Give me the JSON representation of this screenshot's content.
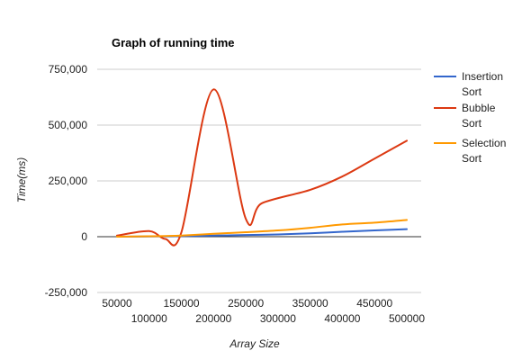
{
  "chart_data": {
    "type": "line",
    "title": "Graph of running time",
    "xlabel": "Array Size",
    "ylabel": "Time(ms)",
    "xlim": [
      50000,
      500000
    ],
    "ylim": [
      -250000,
      750000
    ],
    "x_ticks_row1": [
      "50000",
      "150000",
      "250000",
      "350000",
      "450000"
    ],
    "x_ticks_row2": [
      "100000",
      "200000",
      "300000",
      "400000",
      "500000"
    ],
    "y_ticks": [
      "750,000",
      "500,000",
      "250,000",
      "0",
      "-250,000"
    ],
    "y_tick_values": [
      750000,
      500000,
      250000,
      0,
      -250000
    ],
    "grid": true,
    "legend_position": "right",
    "series": [
      {
        "name": "Insertion Sort",
        "color": "#3366cc",
        "x": [
          50000,
          100000,
          125000,
          150000,
          200000,
          250000,
          300000,
          350000,
          400000,
          450000,
          500000
        ],
        "values": [
          0,
          1000,
          1500,
          2500,
          5000,
          7500,
          10000,
          15000,
          22000,
          28000,
          34000
        ]
      },
      {
        "name": "Bubble Sort",
        "color": "#dc3912",
        "x": [
          50000,
          100000,
          125000,
          150000,
          200000,
          250000,
          275000,
          350000,
          400000,
          450000,
          500000
        ],
        "values": [
          5000,
          25000,
          -10000,
          20000,
          660000,
          80000,
          150000,
          210000,
          270000,
          350000,
          430000
        ]
      },
      {
        "name": "Selection Sort",
        "color": "#ff9900",
        "x": [
          50000,
          100000,
          125000,
          150000,
          200000,
          250000,
          300000,
          350000,
          400000,
          450000,
          500000
        ],
        "values": [
          0,
          2000,
          3000,
          5000,
          13000,
          20000,
          28000,
          40000,
          55000,
          63000,
          75000
        ]
      }
    ]
  }
}
